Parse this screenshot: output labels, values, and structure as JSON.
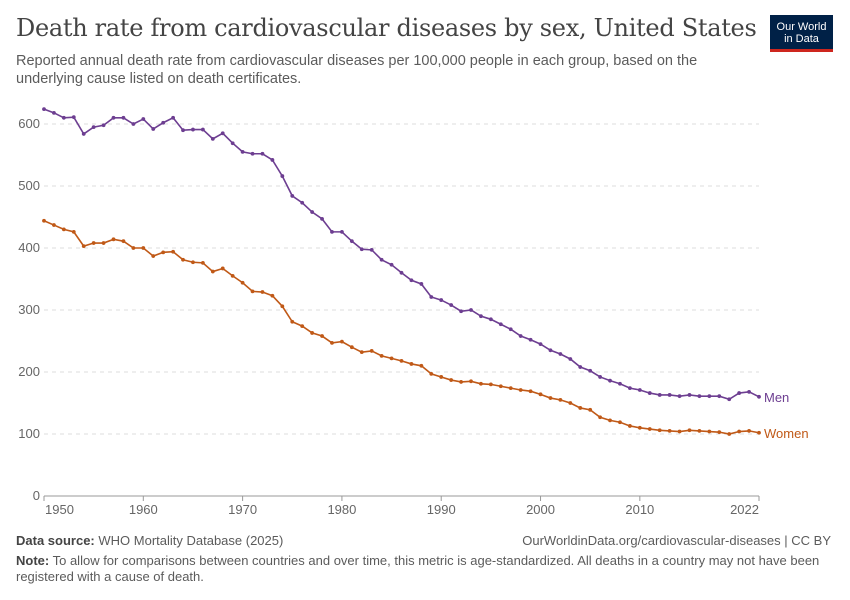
{
  "header": {
    "title": "Death rate from cardiovascular diseases by sex, United States",
    "subtitle": "Reported annual death rate from cardiovascular diseases per 100,000 people in each group, based on the underlying cause listed on death certificates.",
    "logo_line1": "Our World",
    "logo_line2": "in Data"
  },
  "footer": {
    "source_label": "Data source:",
    "source": "WHO Mortality Database (2025)",
    "url": "OurWorldinData.org/cardiovascular-diseases | CC BY",
    "note_label": "Note:",
    "note": "To allow for comparisons between countries and over time, this metric is age-standardized. All deaths in a country may not have been registered with a cause of death."
  },
  "chart_data": {
    "type": "line",
    "title": "Death rate from cardiovascular diseases by sex, United States",
    "xlim": [
      1950,
      2022
    ],
    "ylim": [
      0,
      600
    ],
    "x_ticks": [
      1950,
      1960,
      1970,
      1980,
      1990,
      2000,
      2010,
      2022
    ],
    "y_ticks": [
      0,
      100,
      200,
      300,
      400,
      500,
      600
    ],
    "grid": "horizontal dashed",
    "legend": "inline-right",
    "x_start": 1950,
    "series": [
      {
        "name": "Men",
        "color": "#6d3e91",
        "values": [
          624,
          618,
          610,
          611,
          584,
          595,
          598,
          610,
          610,
          600,
          608,
          592,
          602,
          610,
          590,
          591,
          591,
          576,
          585,
          569,
          555,
          552,
          552,
          542,
          516,
          484,
          473,
          458,
          447,
          426,
          426,
          411,
          398,
          397,
          381,
          373,
          360,
          348,
          342,
          321,
          316,
          308,
          298,
          300,
          290,
          285,
          277,
          269,
          258,
          252,
          245,
          235,
          229,
          221,
          208,
          202,
          192,
          186,
          181,
          174,
          171,
          166,
          163,
          163,
          161,
          163,
          161,
          161,
          161,
          156,
          166,
          168,
          160
        ]
      },
      {
        "name": "Women",
        "color": "#c05917",
        "values": [
          444,
          437,
          430,
          426,
          403,
          408,
          408,
          414,
          411,
          400,
          400,
          387,
          393,
          394,
          381,
          377,
          376,
          362,
          367,
          355,
          344,
          330,
          329,
          323,
          306,
          281,
          274,
          263,
          258,
          247,
          249,
          240,
          232,
          234,
          226,
          222,
          218,
          213,
          210,
          197,
          192,
          187,
          184,
          185,
          181,
          180,
          177,
          174,
          171,
          169,
          164,
          158,
          155,
          150,
          142,
          139,
          127,
          122,
          119,
          113,
          110,
          108,
          106,
          105,
          104,
          106,
          105,
          104,
          103,
          100,
          104,
          105,
          102
        ]
      }
    ]
  }
}
